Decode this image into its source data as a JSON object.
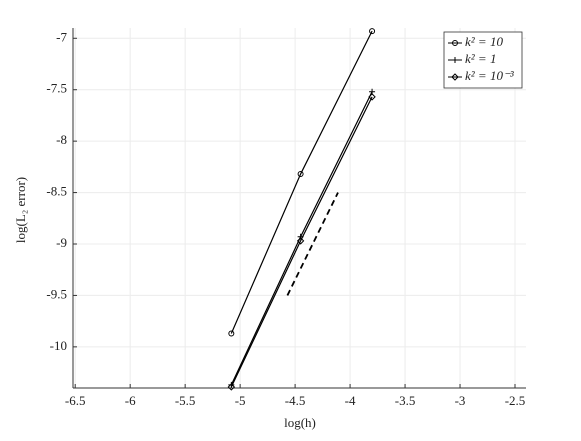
{
  "chart_data": {
    "type": "line",
    "x_label": "log(h)",
    "y_label": "log(L₂ error)",
    "series": [
      {
        "name": "k² = 10",
        "color": "#000000",
        "marker": "circle",
        "x": [
          -5.08,
          -4.45,
          -3.8
        ],
        "values": [
          -9.87,
          -8.32,
          -6.93
        ]
      },
      {
        "name": "k² = 1",
        "color": "#000000",
        "marker": "plus",
        "x": [
          -5.08,
          -4.45,
          -3.8
        ],
        "values": [
          -10.37,
          -8.93,
          -7.52
        ]
      },
      {
        "name": "k² = 10⁻³",
        "color": "#000000",
        "marker": "diamond",
        "x": [
          -5.08,
          -4.45,
          -3.8
        ],
        "values": [
          -10.39,
          -8.97,
          -7.57
        ]
      }
    ],
    "reference": {
      "x": [
        -4.57,
        -4.11
      ],
      "values": [
        -9.5,
        -8.5
      ],
      "color": "#000000"
    },
    "xlim": [
      -6.52,
      -2.4
    ],
    "ylim": [
      -10.4,
      -6.9
    ],
    "xticks": [
      -6.5,
      -6,
      -5.5,
      -5,
      -4.5,
      -4,
      -3.5,
      -3,
      -2.5
    ],
    "yticks": [
      -10,
      -9.5,
      -9,
      -8.5,
      -8,
      -7.5,
      -7
    ],
    "grid": true,
    "legend": "upper right"
  }
}
